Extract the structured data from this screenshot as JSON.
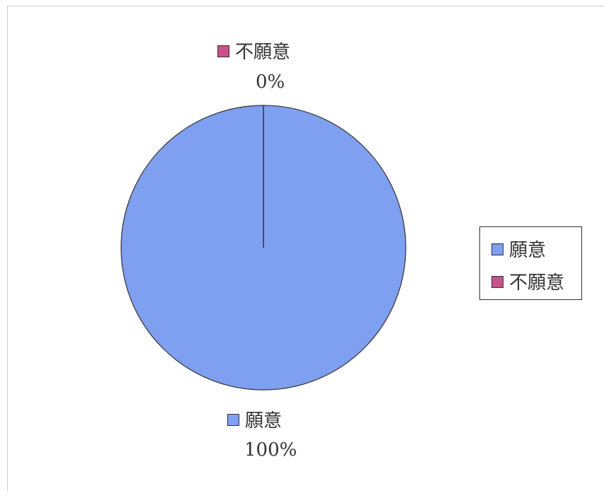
{
  "chart_data": {
    "type": "pie",
    "categories": [
      "願意",
      "不願意"
    ],
    "values": [
      100,
      0
    ],
    "colors": [
      "#7f9ff0",
      "#c4548a"
    ],
    "data_labels": [
      {
        "category": "願意",
        "text": "願意",
        "percent": "100%"
      },
      {
        "category": "不願意",
        "text": "不願意",
        "percent": "0%"
      }
    ],
    "legend": {
      "position": "right",
      "entries": [
        "願意",
        "不願意"
      ]
    },
    "title": "",
    "start_angle_deg": 0
  }
}
